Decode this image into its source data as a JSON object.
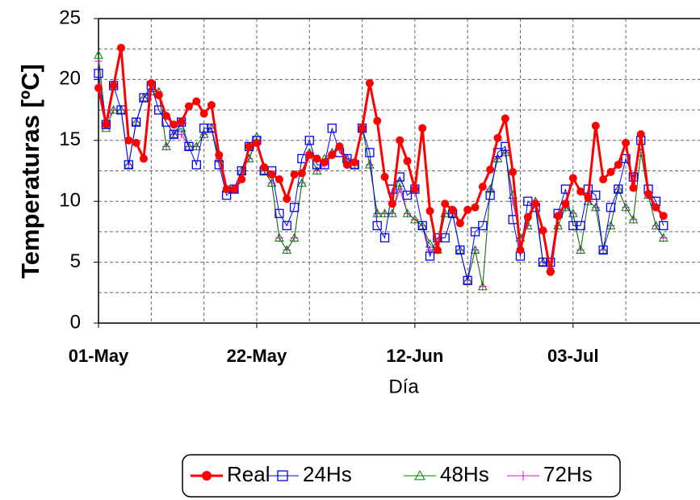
{
  "chart_data": {
    "type": "line",
    "y_label": "Temperaturas [ºC]",
    "x_label": "Día",
    "categories": [
      "01-May",
      null,
      null,
      null,
      null,
      null,
      null,
      null,
      null,
      null,
      null,
      null,
      null,
      null,
      null,
      null,
      null,
      null,
      null,
      null,
      null,
      "22-May",
      null,
      null,
      null,
      null,
      null,
      null,
      null,
      null,
      null,
      null,
      null,
      null,
      null,
      null,
      null,
      null,
      null,
      null,
      null,
      null,
      "12-Jun",
      null,
      null,
      null,
      null,
      null,
      null,
      null,
      null,
      null,
      null,
      null,
      null,
      null,
      null,
      null,
      null,
      null,
      null,
      null,
      null,
      "03-Jul",
      null,
      null,
      null,
      null,
      null,
      null,
      null,
      null,
      null,
      null,
      null,
      null
    ],
    "ylim": [
      0,
      25
    ],
    "yticks": [
      0,
      5,
      10,
      15,
      20,
      25
    ],
    "minor_yticks": [
      2.5,
      7.5,
      12.5,
      17.5,
      22.5
    ],
    "grid": true,
    "legend": "bottom",
    "series": [
      {
        "name": "Real",
        "color": "#ff0000",
        "marker": "circle",
        "values": [
          19.3,
          16.3,
          19.5,
          22.6,
          15,
          14.8,
          13.5,
          19.7,
          18.7,
          17,
          16.3,
          16.5,
          17.8,
          18.2,
          17.2,
          17.9,
          13.8,
          11,
          11,
          11.8,
          14.5,
          14.8,
          12.8,
          12.2,
          11.8,
          10.2,
          12.2,
          12.3,
          13.8,
          13.5,
          13.2,
          13.8,
          14.5,
          13,
          13.2,
          16,
          19.7,
          16.6,
          12,
          9.8,
          15,
          13.3,
          11,
          16,
          9.2,
          6,
          9.8,
          9.3,
          8.2,
          9.3,
          9.5,
          11.2,
          12.6,
          15.2,
          16.8,
          12.4,
          6,
          8.7,
          9.8,
          7.6,
          4.2,
          8.8,
          9.8,
          11.9,
          10.8,
          10.3,
          16.2,
          11.8,
          12.4,
          13,
          14.8,
          11.1,
          15.5,
          10.6,
          9.5,
          8.8
        ]
      },
      {
        "name": "24Hs",
        "color": "#0000ff",
        "marker": "square",
        "values": [
          20.5,
          16.3,
          19.5,
          17.5,
          13,
          16.5,
          18.5,
          19.5,
          17.5,
          16.5,
          15.5,
          16.5,
          14.5,
          13,
          16,
          16,
          13,
          10.5,
          11,
          12.5,
          14.5,
          15,
          12.5,
          12.5,
          9,
          8,
          9.5,
          13.5,
          15,
          13,
          13,
          16,
          14,
          13.5,
          13,
          16,
          14,
          8,
          7,
          11,
          12,
          10.5,
          11,
          8,
          5.5,
          7,
          7,
          9,
          6,
          3.5,
          7.5,
          8,
          10.5,
          14,
          14.5,
          8.5,
          5.5,
          10,
          9.5,
          5,
          5,
          9,
          11,
          8,
          8,
          11,
          10.5,
          6,
          9.5,
          11,
          13.5,
          12,
          15,
          11,
          10,
          8
        ]
      },
      {
        "name": "48Hs",
        "color": "#008000",
        "marker": "triangle",
        "values": [
          22,
          16,
          17.5,
          17.5,
          13,
          16.5,
          18.5,
          19,
          19,
          14.5,
          15.5,
          16,
          14.5,
          14.5,
          15.5,
          16,
          13.5,
          11,
          11,
          12.5,
          13.5,
          15.3,
          12.5,
          11.5,
          7,
          6,
          7,
          11.5,
          14,
          12.5,
          13.5,
          14,
          14.5,
          13.5,
          13,
          16,
          13,
          9,
          9,
          9,
          11.5,
          9,
          8.5,
          8,
          6.5,
          6,
          9,
          9,
          6,
          3.5,
          6,
          3,
          11,
          13.5,
          14,
          10.5,
          7,
          8,
          10,
          5,
          4.5,
          8,
          9.5,
          9,
          6,
          10,
          9.5,
          6,
          8,
          11,
          9.5,
          8.5,
          14,
          10.5,
          8,
          7
        ]
      },
      {
        "name": "72Hs",
        "color": "#ff00ff",
        "marker": "plus",
        "values": [
          21.5,
          16.5,
          17.5,
          17.5,
          13,
          16.5,
          18.5,
          19,
          19,
          14.5,
          15.5,
          15.5,
          14.5,
          14.5,
          15.5,
          16,
          13.5,
          11,
          11,
          12.5,
          13.5,
          15,
          12.5,
          11.5,
          7,
          6,
          7,
          11.5,
          14,
          12.5,
          13,
          14,
          14.5,
          13.5,
          13,
          16,
          13,
          9,
          9,
          9,
          11,
          9,
          8.5,
          8,
          6,
          6,
          9,
          9,
          6,
          3.5,
          6,
          3,
          11,
          13.5,
          14,
          10,
          7,
          8,
          10,
          5,
          4.5,
          8,
          9.5,
          9,
          6,
          10,
          9.5,
          6,
          8,
          11,
          9.5,
          8.5,
          14,
          10.5,
          8,
          7
        ]
      }
    ]
  }
}
